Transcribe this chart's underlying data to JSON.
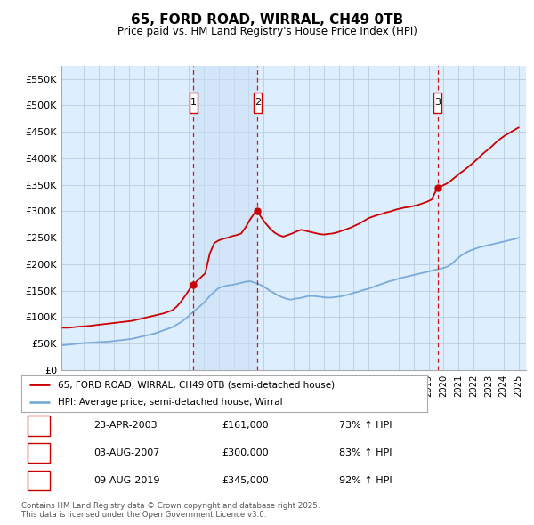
{
  "title": "65, FORD ROAD, WIRRAL, CH49 0TB",
  "subtitle": "Price paid vs. HM Land Registry's House Price Index (HPI)",
  "red_label": "65, FORD ROAD, WIRRAL, CH49 0TB (semi-detached house)",
  "blue_label": "HPI: Average price, semi-detached house, Wirral",
  "footnote": "Contains HM Land Registry data © Crown copyright and database right 2025.\nThis data is licensed under the Open Government Licence v3.0.",
  "transactions": [
    {
      "num": 1,
      "date": "23-APR-2003",
      "price": 161000,
      "hpi_pct": "73% ↑ HPI",
      "year": 2003.3
    },
    {
      "num": 2,
      "date": "03-AUG-2007",
      "price": 300000,
      "hpi_pct": "83% ↑ HPI",
      "year": 2007.58
    },
    {
      "num": 3,
      "date": "09-AUG-2019",
      "price": 345000,
      "hpi_pct": "92% ↑ HPI",
      "year": 2019.6
    }
  ],
  "ylim": [
    0,
    575000
  ],
  "xlim_start": 1994.5,
  "xlim_end": 2025.5,
  "red_color": "#cc0000",
  "blue_color": "#7aabdb",
  "shaded_color": "#ddeeff",
  "bg_color": "#ddeeff",
  "plot_bg": "#ffffff",
  "grid_color": "#bbccdd",
  "vline_color": "#cc0000",
  "box_color": "#cc0000",
  "yticks": [
    0,
    50000,
    100000,
    150000,
    200000,
    250000,
    300000,
    350000,
    400000,
    450000,
    500000,
    550000
  ],
  "ytick_labels": [
    "£0",
    "£50K",
    "£100K",
    "£150K",
    "£200K",
    "£250K",
    "£300K",
    "£350K",
    "£400K",
    "£450K",
    "£500K",
    "£550K"
  ],
  "xticks": [
    1995,
    1996,
    1997,
    1998,
    1999,
    2000,
    2001,
    2002,
    2003,
    2004,
    2005,
    2006,
    2007,
    2008,
    2009,
    2010,
    2011,
    2012,
    2013,
    2014,
    2015,
    2016,
    2017,
    2018,
    2019,
    2020,
    2021,
    2022,
    2023,
    2024,
    2025
  ],
  "red_data_x": [
    1994.6,
    1995.0,
    1995.3,
    1995.6,
    1995.9,
    1996.2,
    1996.5,
    1996.8,
    1997.1,
    1997.4,
    1997.7,
    1998.0,
    1998.3,
    1998.6,
    1998.9,
    1999.2,
    1999.5,
    1999.8,
    2000.1,
    2000.4,
    2000.7,
    2001.0,
    2001.3,
    2001.6,
    2001.9,
    2002.2,
    2002.5,
    2002.8,
    2003.1,
    2003.3,
    2003.5,
    2003.8,
    2004.1,
    2004.4,
    2004.7,
    2005.0,
    2005.3,
    2005.6,
    2005.9,
    2006.2,
    2006.5,
    2006.8,
    2007.1,
    2007.4,
    2007.58,
    2007.8,
    2008.1,
    2008.4,
    2008.7,
    2009.0,
    2009.3,
    2009.6,
    2009.9,
    2010.2,
    2010.5,
    2010.8,
    2011.1,
    2011.4,
    2011.7,
    2012.0,
    2012.3,
    2012.6,
    2012.9,
    2013.2,
    2013.5,
    2013.8,
    2014.1,
    2014.4,
    2014.7,
    2015.0,
    2015.3,
    2015.6,
    2015.9,
    2016.2,
    2016.5,
    2016.8,
    2017.1,
    2017.4,
    2017.7,
    2018.0,
    2018.3,
    2018.6,
    2018.9,
    2019.2,
    2019.6,
    2019.9,
    2020.2,
    2020.5,
    2020.8,
    2021.1,
    2021.4,
    2021.7,
    2022.0,
    2022.3,
    2022.6,
    2022.9,
    2023.2,
    2023.5,
    2023.8,
    2024.1,
    2024.4,
    2024.7,
    2025.0
  ],
  "red_data_y": [
    80000,
    80000,
    81000,
    82000,
    82500,
    83000,
    84000,
    85000,
    86000,
    87000,
    88000,
    89000,
    90000,
    91000,
    92000,
    93000,
    95000,
    97000,
    99000,
    101000,
    103000,
    105000,
    107000,
    110000,
    113000,
    120000,
    130000,
    142000,
    155000,
    161000,
    167000,
    175000,
    183000,
    220000,
    240000,
    245000,
    248000,
    250000,
    253000,
    255000,
    258000,
    270000,
    285000,
    297000,
    300000,
    290000,
    278000,
    268000,
    260000,
    255000,
    252000,
    255000,
    258000,
    262000,
    265000,
    263000,
    261000,
    259000,
    257000,
    256000,
    257000,
    258000,
    260000,
    263000,
    266000,
    269000,
    273000,
    277000,
    282000,
    287000,
    290000,
    293000,
    295000,
    298000,
    300000,
    303000,
    305000,
    307000,
    308000,
    310000,
    312000,
    315000,
    318000,
    322000,
    345000,
    348000,
    352000,
    358000,
    365000,
    372000,
    378000,
    385000,
    392000,
    400000,
    408000,
    415000,
    422000,
    430000,
    437000,
    443000,
    448000,
    453000,
    458000
  ],
  "blue_data_x": [
    1994.6,
    1995.0,
    1995.3,
    1995.6,
    1995.9,
    1996.2,
    1996.5,
    1996.8,
    1997.1,
    1997.4,
    1997.7,
    1998.0,
    1998.3,
    1998.6,
    1998.9,
    1999.2,
    1999.5,
    1999.8,
    2000.1,
    2000.4,
    2000.7,
    2001.0,
    2001.3,
    2001.6,
    2001.9,
    2002.2,
    2002.5,
    2002.8,
    2003.1,
    2003.5,
    2003.8,
    2004.1,
    2004.4,
    2004.7,
    2005.0,
    2005.3,
    2005.6,
    2005.9,
    2006.2,
    2006.5,
    2006.8,
    2007.1,
    2007.4,
    2007.7,
    2008.0,
    2008.3,
    2008.6,
    2008.9,
    2009.2,
    2009.5,
    2009.8,
    2010.1,
    2010.4,
    2010.7,
    2011.0,
    2011.3,
    2011.6,
    2011.9,
    2012.2,
    2012.5,
    2012.8,
    2013.1,
    2013.4,
    2013.7,
    2014.0,
    2014.3,
    2014.6,
    2014.9,
    2015.2,
    2015.5,
    2015.8,
    2016.1,
    2016.4,
    2016.7,
    2017.0,
    2017.3,
    2017.6,
    2017.9,
    2018.2,
    2018.5,
    2018.8,
    2019.1,
    2019.4,
    2019.7,
    2020.0,
    2020.3,
    2020.6,
    2020.9,
    2021.2,
    2021.5,
    2021.8,
    2022.1,
    2022.4,
    2022.7,
    2023.0,
    2023.3,
    2023.6,
    2023.9,
    2024.2,
    2024.5,
    2024.8,
    2025.0
  ],
  "blue_data_y": [
    47000,
    48000,
    49000,
    50000,
    51000,
    51500,
    52000,
    52500,
    53000,
    53500,
    54000,
    55000,
    56000,
    57000,
    58000,
    59000,
    61000,
    63000,
    65000,
    67000,
    69000,
    72000,
    75000,
    78000,
    81000,
    86000,
    91000,
    97000,
    105000,
    115000,
    122000,
    130000,
    140000,
    148000,
    155000,
    158000,
    160000,
    161000,
    163000,
    165000,
    167000,
    168000,
    165000,
    162000,
    158000,
    152000,
    147000,
    142000,
    138000,
    135000,
    133000,
    135000,
    136000,
    138000,
    140000,
    140000,
    139000,
    138000,
    137000,
    137000,
    138000,
    139000,
    141000,
    143000,
    146000,
    148000,
    151000,
    153000,
    156000,
    159000,
    162000,
    165000,
    168000,
    170000,
    173000,
    175000,
    177000,
    179000,
    181000,
    183000,
    185000,
    187000,
    189000,
    191000,
    193000,
    196000,
    202000,
    210000,
    217000,
    222000,
    226000,
    229000,
    232000,
    234000,
    236000,
    238000,
    240000,
    242000,
    244000,
    246000,
    248000,
    250000
  ]
}
